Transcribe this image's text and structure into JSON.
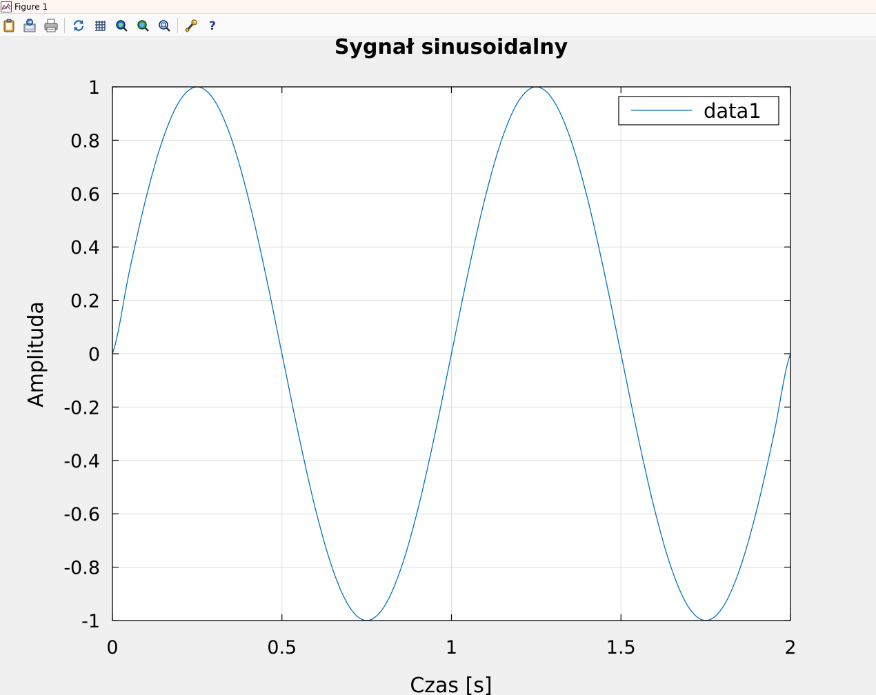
{
  "window": {
    "title": "Figure 1",
    "icon": "figure-icon"
  },
  "toolbar": {
    "buttons": [
      {
        "icon": "copy-clipboard-icon"
      },
      {
        "icon": "export-icon"
      },
      {
        "icon": "print-icon"
      },
      {
        "icon": "refresh-axes-icon"
      },
      {
        "icon": "toggle-grid-icon"
      },
      {
        "icon": "zoom-in-icon"
      },
      {
        "icon": "zoom-out-icon"
      },
      {
        "icon": "autoscale-icon"
      },
      {
        "icon": "properties-wrench-icon"
      },
      {
        "icon": "help-icon"
      }
    ]
  },
  "colors": {
    "series": "#0072bd",
    "grid": "#dedede",
    "axes": "#000000",
    "background": "#f0f0f0",
    "plot_background": "#ffffff"
  },
  "chart_data": {
    "type": "line",
    "title": "Sygnał sinusoidalny",
    "xlabel": "Czas [s]",
    "ylabel": "Amplituda",
    "xlim": [
      0,
      2
    ],
    "ylim": [
      -1,
      1
    ],
    "xticks": [
      0,
      0.5,
      1,
      1.5,
      2
    ],
    "xtick_labels": [
      "0",
      "0.5",
      "1",
      "1.5",
      "2"
    ],
    "yticks": [
      1,
      0.8,
      0.6,
      0.4,
      0.2,
      0,
      -0.2,
      -0.4,
      -0.6,
      -0.8,
      -1
    ],
    "ytick_labels": [
      "1",
      "0.8",
      "0.6",
      "0.4",
      "0.2",
      "0",
      "-0.2",
      "-0.4",
      "-0.6",
      "-0.8",
      "-1"
    ],
    "grid": true,
    "legend": {
      "position": "top-right",
      "entries": [
        "data1"
      ]
    },
    "series": [
      {
        "name": "data1",
        "color": "#0072bd",
        "x": [
          0,
          0.05,
          0.1,
          0.15,
          0.2,
          0.25,
          0.3,
          0.35,
          0.4,
          0.45,
          0.5,
          0.55,
          0.6,
          0.65,
          0.7,
          0.75,
          0.8,
          0.85,
          0.9,
          0.95,
          1,
          1.05,
          1.1,
          1.15,
          1.2,
          1.25,
          1.3,
          1.35,
          1.4,
          1.45,
          1.5,
          1.55,
          1.6,
          1.65,
          1.7,
          1.75,
          1.8,
          1.85,
          1.9,
          1.95,
          2
        ],
        "y": [
          0,
          0.309,
          0.588,
          0.809,
          0.951,
          1,
          0.951,
          0.809,
          0.588,
          0.309,
          0,
          -0.309,
          -0.588,
          -0.809,
          -0.951,
          -1,
          -0.951,
          -0.809,
          -0.588,
          -0.309,
          0,
          0.309,
          0.588,
          0.809,
          0.951,
          1,
          0.951,
          0.809,
          0.588,
          0.309,
          0,
          -0.309,
          -0.588,
          -0.809,
          -0.951,
          -1,
          -0.951,
          -0.809,
          -0.588,
          -0.309,
          0
        ]
      }
    ]
  }
}
